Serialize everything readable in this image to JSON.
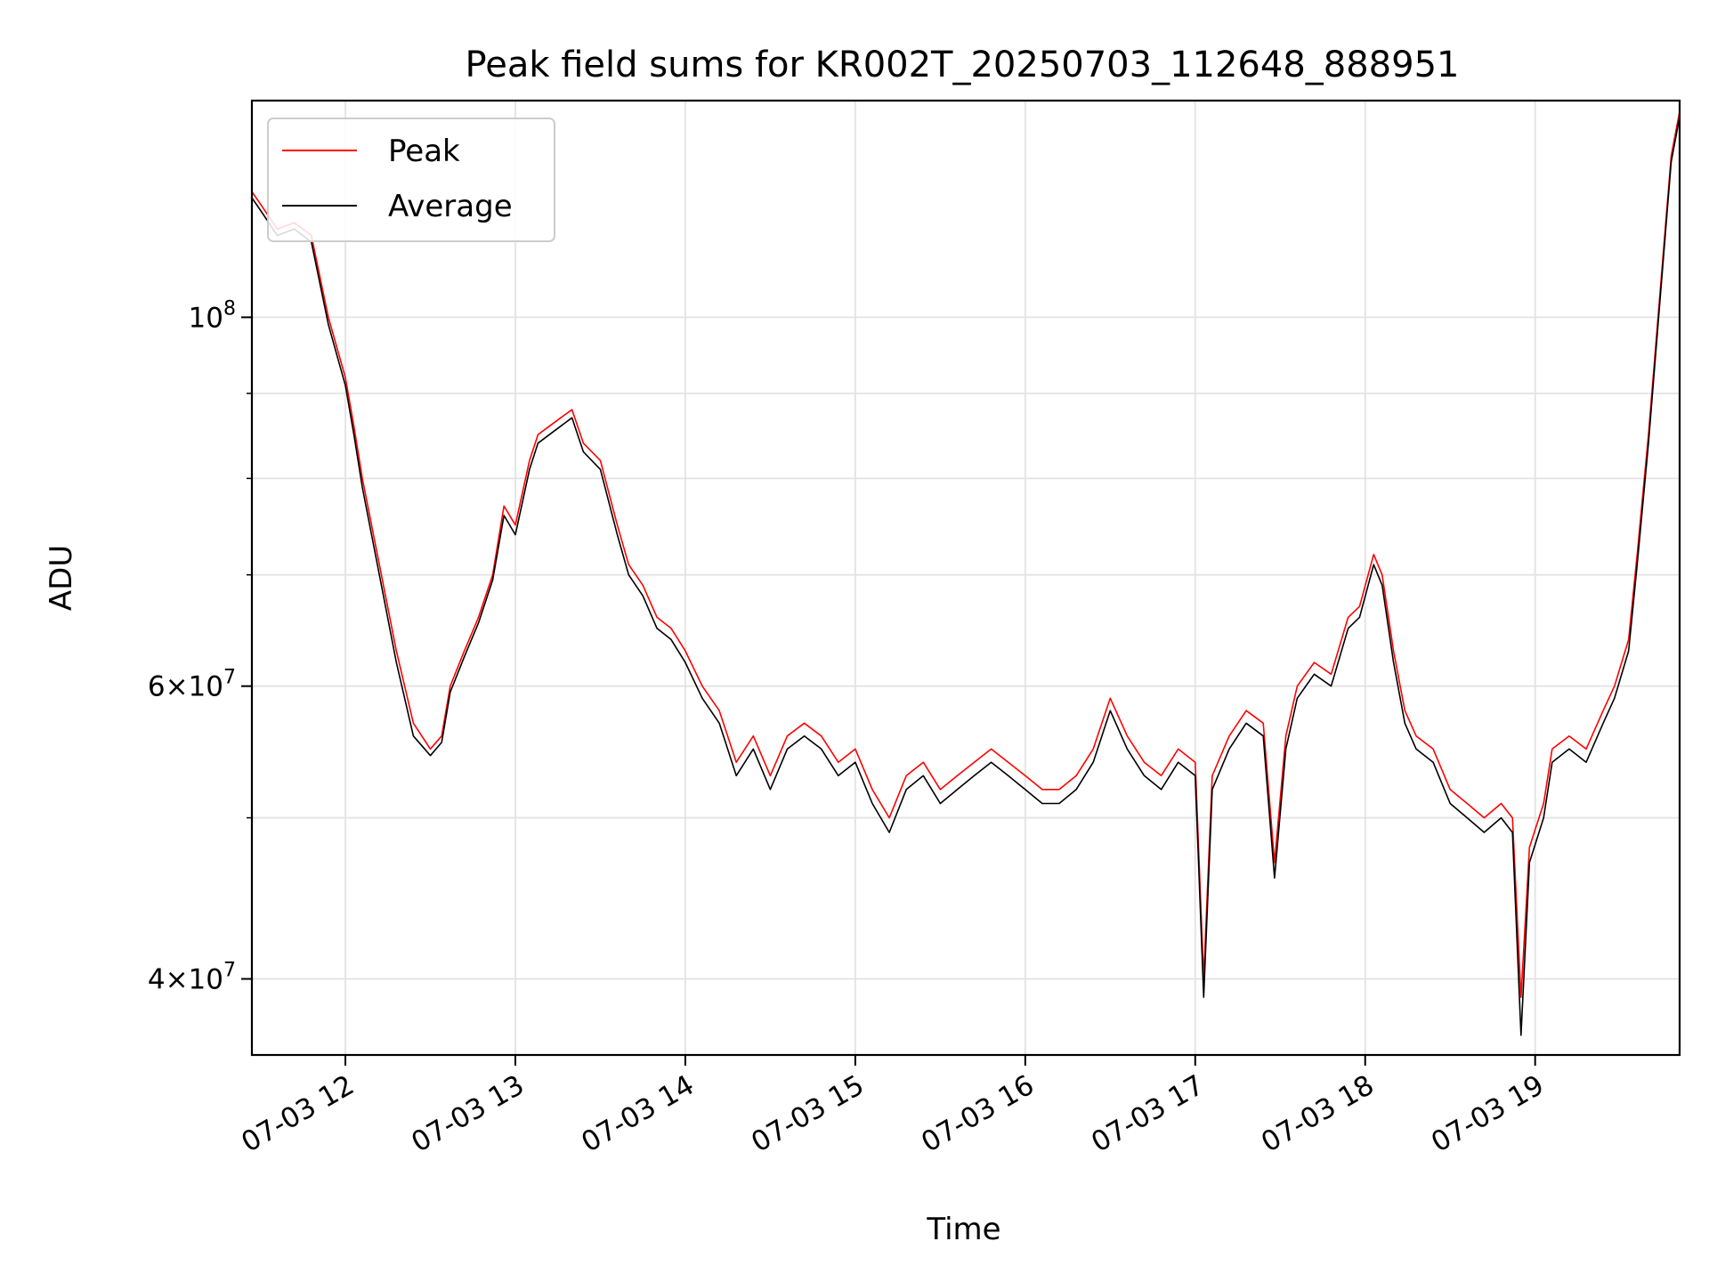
{
  "chart_data": {
    "type": "line",
    "title": "Peak field sums for KR002T_20250703_112648_888951",
    "xlabel": "Time",
    "ylabel": "ADU",
    "y_scale": "log",
    "ylim": [
      36000000,
      135000000
    ],
    "xlim": [
      "07-03 11:27",
      "07-03 19:51"
    ],
    "grid": true,
    "legend_position": "upper-left",
    "x_ticks": [
      "07-03 12",
      "07-03 13",
      "07-03 14",
      "07-03 15",
      "07-03 16",
      "07-03 17",
      "07-03 18",
      "07-03 19"
    ],
    "y_ticks": [
      {
        "value": 40000000,
        "mantissa": "4",
        "base": "10",
        "exp": "7"
      },
      {
        "value": 60000000,
        "mantissa": "6",
        "base": "10",
        "exp": "7"
      },
      {
        "value": 100000000,
        "mantissa": "",
        "base": "10",
        "exp": "8"
      }
    ],
    "y_minor_ticks": [
      50000000,
      70000000,
      80000000,
      90000000
    ],
    "x": [
      "07-03 11:27",
      "07-03 11:30",
      "07-03 11:36",
      "07-03 11:42",
      "07-03 11:48",
      "07-03 11:54",
      "07-03 12:00",
      "07-03 12:03",
      "07-03 12:06",
      "07-03 12:12",
      "07-03 12:18",
      "07-03 12:24",
      "07-03 12:30",
      "07-03 12:34",
      "07-03 12:37",
      "07-03 12:42",
      "07-03 12:47",
      "07-03 12:52",
      "07-03 12:56",
      "07-03 13:00",
      "07-03 13:05",
      "07-03 13:08",
      "07-03 13:12",
      "07-03 13:16",
      "07-03 13:20",
      "07-03 13:24",
      "07-03 13:30",
      "07-03 13:36",
      "07-03 13:40",
      "07-03 13:45",
      "07-03 13:50",
      "07-03 13:55",
      "07-03 14:00",
      "07-03 14:06",
      "07-03 14:12",
      "07-03 14:18",
      "07-03 14:24",
      "07-03 14:30",
      "07-03 14:36",
      "07-03 14:42",
      "07-03 14:48",
      "07-03 14:54",
      "07-03 15:00",
      "07-03 15:06",
      "07-03 15:12",
      "07-03 15:18",
      "07-03 15:24",
      "07-03 15:30",
      "07-03 15:36",
      "07-03 15:42",
      "07-03 15:48",
      "07-03 15:54",
      "07-03 16:00",
      "07-03 16:06",
      "07-03 16:12",
      "07-03 16:18",
      "07-03 16:24",
      "07-03 16:30",
      "07-03 16:36",
      "07-03 16:42",
      "07-03 16:48",
      "07-03 16:54",
      "07-03 17:00",
      "07-03 17:03",
      "07-03 17:06",
      "07-03 17:12",
      "07-03 17:18",
      "07-03 17:24",
      "07-03 17:28",
      "07-03 17:32",
      "07-03 17:36",
      "07-03 17:42",
      "07-03 17:48",
      "07-03 17:54",
      "07-03 17:58",
      "07-03 18:03",
      "07-03 18:06",
      "07-03 18:10",
      "07-03 18:14",
      "07-03 18:18",
      "07-03 18:24",
      "07-03 18:30",
      "07-03 18:36",
      "07-03 18:42",
      "07-03 18:48",
      "07-03 18:52",
      "07-03 18:55",
      "07-03 18:58",
      "07-03 19:03",
      "07-03 19:06",
      "07-03 19:12",
      "07-03 19:18",
      "07-03 19:24",
      "07-03 19:28",
      "07-03 19:33",
      "07-03 19:36",
      "07-03 19:40",
      "07-03 19:44",
      "07-03 19:48",
      "07-03 19:51"
    ],
    "series": [
      {
        "name": "Peak",
        "color": "#ff0000",
        "values": [
          119000000,
          117000000,
          113000000,
          114000000,
          112000000,
          100000000,
          92000000,
          86000000,
          80000000,
          71000000,
          63000000,
          57000000,
          55000000,
          56000000,
          60000000,
          63000000,
          66000000,
          70000000,
          77000000,
          75000000,
          82000000,
          85000000,
          86000000,
          87000000,
          88000000,
          84000000,
          82000000,
          75000000,
          71000000,
          69000000,
          66000000,
          65000000,
          63000000,
          60000000,
          58000000,
          54000000,
          56000000,
          53000000,
          56000000,
          57000000,
          56000000,
          54000000,
          55000000,
          52000000,
          50000000,
          53000000,
          54000000,
          52000000,
          53000000,
          54000000,
          55000000,
          54000000,
          53000000,
          52000000,
          52000000,
          53000000,
          55000000,
          59000000,
          56000000,
          54000000,
          53000000,
          55000000,
          54000000,
          40000000,
          53000000,
          56000000,
          58000000,
          57000000,
          47000000,
          56000000,
          60000000,
          62000000,
          61000000,
          66000000,
          67000000,
          72000000,
          70000000,
          63000000,
          58000000,
          56000000,
          55000000,
          52000000,
          51000000,
          50000000,
          51000000,
          50000000,
          39000000,
          48000000,
          51000000,
          55000000,
          56000000,
          55000000,
          58000000,
          60000000,
          64000000,
          72000000,
          85000000,
          103000000,
          125000000,
          133000000
        ]
      },
      {
        "name": "Average",
        "color": "#000000",
        "values": [
          118000000,
          116000000,
          112000000,
          113000000,
          111000000,
          99000000,
          91000000,
          85000000,
          79000000,
          70000000,
          62000000,
          56000000,
          54500000,
          55500000,
          59500000,
          62500000,
          65500000,
          69500000,
          76000000,
          74000000,
          81000000,
          84000000,
          85000000,
          86000000,
          87000000,
          83000000,
          81000000,
          74000000,
          70000000,
          68000000,
          65000000,
          64000000,
          62000000,
          59000000,
          57000000,
          53000000,
          55000000,
          52000000,
          55000000,
          56000000,
          55000000,
          53000000,
          54000000,
          51000000,
          49000000,
          52000000,
          53000000,
          51000000,
          52000000,
          53000000,
          54000000,
          53000000,
          52000000,
          51000000,
          51000000,
          52000000,
          54000000,
          58000000,
          55000000,
          53000000,
          52000000,
          54000000,
          53000000,
          39000000,
          52000000,
          55000000,
          57000000,
          56000000,
          46000000,
          55000000,
          59000000,
          61000000,
          60000000,
          65000000,
          66000000,
          71000000,
          69000000,
          62000000,
          57000000,
          55000000,
          54000000,
          51000000,
          50000000,
          49000000,
          50000000,
          49000000,
          37000000,
          47000000,
          50000000,
          54000000,
          55000000,
          54000000,
          57000000,
          59000000,
          63000000,
          71000000,
          84000000,
          102000000,
          124000000,
          132000000
        ]
      }
    ]
  }
}
